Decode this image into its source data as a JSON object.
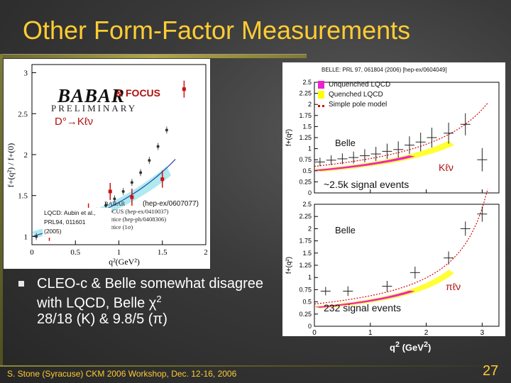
{
  "slide": {
    "title": "Other Form-Factor Measurements",
    "bullet": {
      "prefix": "CLEO-c & Belle somewhat disagree with LQCD, Belle χ",
      "sup": "2",
      "line2": "28/18 (K) & 9.8/5 (π)"
    },
    "footer": "S. Stone (Syracuse) CKM 2006 Workshop, Dec. 12-16, 2006",
    "page_number": "27",
    "bullet_icon": "square-bullet-icon"
  },
  "left_plot": {
    "logo_text": "BABAR",
    "preliminary": "PRELIMINARY",
    "focus": "& FOCUS",
    "decay": "D°→Kℓν",
    "hepex": "(hep-ex/0607077)",
    "lqcd_note_1": "LQCD: Aubin et al.,",
    "lqcd_note_2": "PRL94, 011601",
    "lqcd_note_3": "(2005)",
    "legend": [
      "BABAR",
      "FOCUS (hep-ex/0410037)",
      "Lattice (hep-ph/0408306)",
      "Lattice (1σ)"
    ],
    "ylabel": "f+(q²) / f+(0)",
    "xlabel": "q²(GeV²)",
    "xticks": [
      "0",
      "0.5",
      "1",
      "1.5",
      "2"
    ],
    "yticks": [
      "1",
      "1.5",
      "2",
      "2.5",
      "3"
    ]
  },
  "right_plot": {
    "reference": "BELLE: PRL 97, 061804 (2006) [hep-ex/0604049]",
    "legend": [
      {
        "label": "Unquenched LQCD",
        "color": "#ee22cc"
      },
      {
        "label": "Quenched LQCD",
        "color": "#ffff00"
      },
      {
        "label": "Simple pole model",
        "color": "#dd0000"
      }
    ],
    "top_panel": {
      "experiment": "Belle",
      "decay": "Kℓν",
      "signal": "~2.5k signal events"
    },
    "bottom_panel": {
      "experiment": "Belle",
      "decay": "πℓν",
      "signal": "232 signal events"
    },
    "ylabel": "f+(q²)",
    "yticks": [
      "2.5",
      "2.25",
      "2",
      "1.75",
      "1.5",
      "1.25",
      "1",
      "0.75",
      "0.5",
      "0.25",
      "0"
    ],
    "xticks": [
      "0",
      "1",
      "2",
      "3"
    ],
    "xlabel_text": "q",
    "xlabel_sup": "2",
    "xlabel_unit": " (GeV",
    "xlabel_unit_sup": "2",
    "xlabel_close": ")"
  },
  "chart_data": [
    {
      "type": "scatter",
      "title": "",
      "xlabel": "q²(GeV²)",
      "ylabel": "f+(q²) / f+(0)",
      "xlim": [
        0,
        2
      ],
      "ylim": [
        0.9,
        3.1
      ],
      "series": [
        {
          "name": "BABAR",
          "points": [
            [
              0.05,
              1.0
            ],
            [
              0.15,
              1.03
            ],
            [
              0.25,
              1.06
            ],
            [
              0.35,
              1.1
            ],
            [
              0.45,
              1.14
            ],
            [
              0.55,
              1.19
            ],
            [
              0.65,
              1.25
            ],
            [
              0.75,
              1.31
            ],
            [
              0.85,
              1.38
            ],
            [
              0.95,
              1.46
            ],
            [
              1.05,
              1.55
            ],
            [
              1.15,
              1.66
            ],
            [
              1.25,
              1.78
            ],
            [
              1.35,
              1.93
            ],
            [
              1.45,
              2.1
            ],
            [
              1.55,
              2.3
            ]
          ]
        },
        {
          "name": "FOCUS (hep-ex/0410037)",
          "points": [
            [
              0.2,
              1.05
            ],
            [
              0.45,
              1.1
            ],
            [
              0.65,
              1.3
            ],
            [
              0.9,
              1.55
            ],
            [
              1.15,
              1.48
            ],
            [
              1.5,
              1.7
            ],
            [
              1.75,
              2.8
            ]
          ]
        }
      ]
    },
    {
      "type": "scatter",
      "title": "",
      "ylabel": "f+(q²)",
      "xlim": [
        0,
        3.3
      ],
      "ylim": [
        0,
        2.5
      ],
      "series": [
        {
          "name": "Belle Kℓν",
          "points": [
            [
              0.1,
              0.7
            ],
            [
              0.3,
              0.74
            ],
            [
              0.5,
              0.77
            ],
            [
              0.7,
              0.8
            ],
            [
              0.9,
              0.84
            ],
            [
              1.1,
              0.88
            ],
            [
              1.3,
              0.94
            ],
            [
              1.5,
              0.98
            ],
            [
              1.7,
              1.08
            ],
            [
              1.9,
              1.15
            ],
            [
              2.1,
              1.25
            ],
            [
              2.4,
              1.35
            ],
            [
              2.7,
              1.55
            ],
            [
              3.0,
              0.75
            ]
          ]
        },
        {
          "name": "Belle πℓν",
          "points": [
            [
              0.2,
              0.72
            ],
            [
              0.6,
              0.72
            ],
            [
              1.3,
              0.82
            ],
            [
              1.8,
              1.1
            ],
            [
              2.4,
              1.4
            ],
            [
              2.7,
              2.0
            ],
            [
              3.0,
              2.3
            ]
          ]
        }
      ]
    }
  ]
}
